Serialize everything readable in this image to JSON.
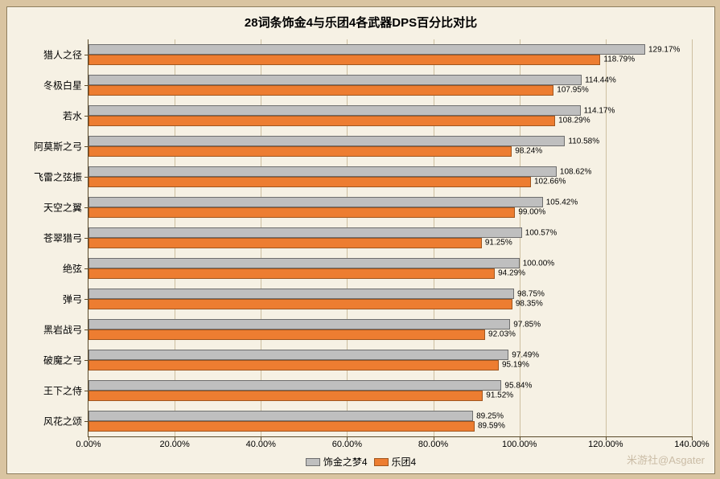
{
  "title": "28词条饰金4与乐团4各武器DPS百分比对比",
  "title_fontsize": 15,
  "legend": {
    "series": [
      {
        "label": "饰金之梦4",
        "color": "#bfbfbf",
        "border": "#6e6e6e"
      },
      {
        "label": "乐团4",
        "color": "#ed7d31",
        "border": "#a0561f"
      }
    ],
    "fontsize": 12
  },
  "axis": {
    "xmin": 0,
    "xmax": 140,
    "xtick_step": 20,
    "xtick_format_suffix": "%",
    "xtick_decimals": 2,
    "xtick_fontsize": 11,
    "ytick_fontsize": 12,
    "value_label_fontsize": 10,
    "grid_color": "#cdbfa0",
    "axis_color": "#5a4a2a"
  },
  "categories": [
    {
      "label": "猎人之径",
      "a": 129.17,
      "b": 118.79
    },
    {
      "label": "冬极白星",
      "a": 114.44,
      "b": 107.95
    },
    {
      "label": "若水",
      "a": 114.17,
      "b": 108.29
    },
    {
      "label": "阿莫斯之弓",
      "a": 110.58,
      "b": 98.24
    },
    {
      "label": "飞雷之弦振",
      "a": 108.62,
      "b": 102.66
    },
    {
      "label": "天空之翼",
      "a": 105.42,
      "b": 99.0
    },
    {
      "label": "苍翠猎弓",
      "a": 100.57,
      "b": 91.25
    },
    {
      "label": "绝弦",
      "a": 100.0,
      "b": 94.29
    },
    {
      "label": "弹弓",
      "a": 98.75,
      "b": 98.35
    },
    {
      "label": "黑岩战弓",
      "a": 97.85,
      "b": 92.03
    },
    {
      "label": "破魔之弓",
      "a": 97.49,
      "b": 95.19
    },
    {
      "label": "王下之侍",
      "a": 95.84,
      "b": 91.52
    },
    {
      "label": "风花之颂",
      "a": 89.25,
      "b": 89.59
    }
  ],
  "colors": {
    "outer_bg": "#d9c4a1",
    "inner_bg": "#f6f1e4"
  },
  "watermark": "米游社@Asgater"
}
